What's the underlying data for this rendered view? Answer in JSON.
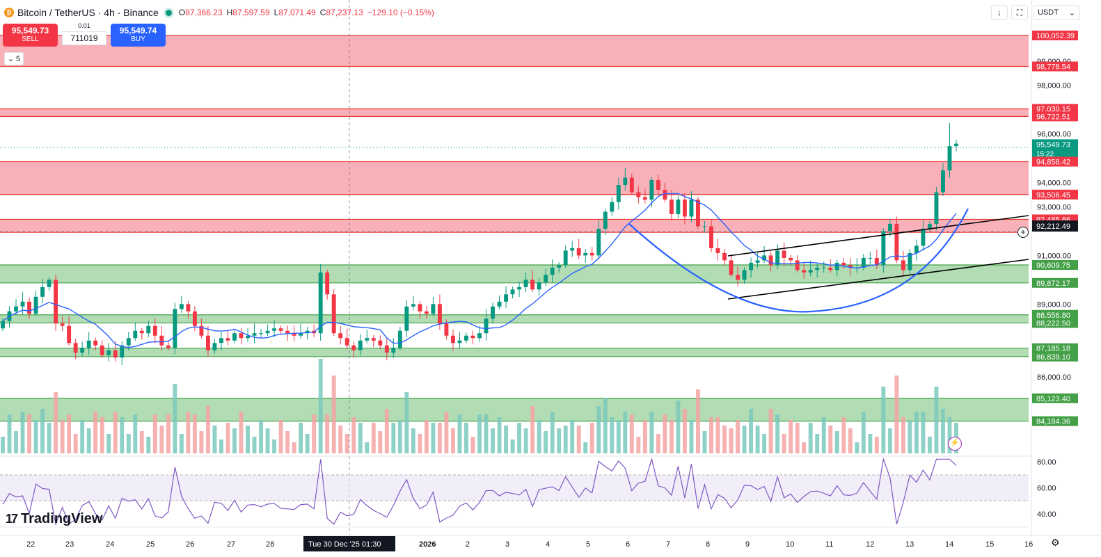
{
  "header": {
    "symbol": "Bitcoin / TetherUS · 4h · Binance",
    "open_label": "O",
    "open": "87,366.23",
    "high_label": "H",
    "high": "87,597.59",
    "low_label": "L",
    "low": "87,071.49",
    "close_label": "C",
    "close": "87,237.13",
    "change": "−129.10 (−0.15%)"
  },
  "trade": {
    "sell_price": "95,549.73",
    "sell_label": "SELL",
    "buy_price": "95,549.74",
    "buy_label": "BUY",
    "qty_step": "0.01",
    "qty": "711019"
  },
  "indicators_toggle": "5",
  "toolbar": {
    "currency": "USDT",
    "download_icon": "download-icon",
    "fullscreen_icon": "fullscreen-icon"
  },
  "branding": {
    "logo_text": "TradingView"
  },
  "colors": {
    "up": "#089981",
    "down": "#f23645",
    "ma": "#2962ff",
    "resistance_zone": "#f7a9b0",
    "support_zone": "#a5d6a7",
    "rsi_line": "#7e57c2"
  },
  "chart_data": {
    "type": "candlestick",
    "timeframe": "4h",
    "price_axis": {
      "range": [
        83600,
        100400
      ],
      "ticks": [
        "100,052.39",
        "99,000.00",
        "98,778.54",
        "98,000.00",
        "97,030.15",
        "96,722.51",
        "96,000.00",
        "95,549.73",
        "94,858.42",
        "94,000.00",
        "93,506.45",
        "93,000.00",
        "92,485.66",
        "92,212.49",
        "91,000.00",
        "90,609.75",
        "89,872.17",
        "89,000.00",
        "88,556.80",
        "88,222.50",
        "87,185.18",
        "86,839.10",
        "86,000.00",
        "85,123.40",
        "84,184.36"
      ]
    },
    "last_price": {
      "value": "95,549.73",
      "countdown": "15:22"
    },
    "crosshair_price": "92,212.49",
    "crosshair_time": "Tue 30 Dec '25   01:30",
    "x_axis_labels": [
      "22",
      "23",
      "24",
      "25",
      "26",
      "27",
      "28",
      "Tue 30 Dec '25   01:30",
      "2026",
      "2",
      "3",
      "4",
      "5",
      "6",
      "7",
      "8",
      "9",
      "10",
      "11",
      "12",
      "13",
      "14",
      "15",
      "16"
    ],
    "zones": [
      {
        "kind": "resistance",
        "from": 98778.54,
        "to": 100052.39
      },
      {
        "kind": "resistance",
        "from": 96722.51,
        "to": 97030.15
      },
      {
        "kind": "resistance",
        "from": 93506.45,
        "to": 94858.42
      },
      {
        "kind": "resistance",
        "from": 91950,
        "to": 92485.66
      },
      {
        "kind": "support",
        "from": 89872.17,
        "to": 90609.75
      },
      {
        "kind": "support",
        "from": 88222.5,
        "to": 88556.8
      },
      {
        "kind": "support",
        "from": 86839.1,
        "to": 87185.18
      },
      {
        "kind": "support",
        "from": 84184.36,
        "to": 85123.4
      }
    ],
    "rsi_axis": {
      "ticks": [
        "80.00",
        "60.00",
        "40.00"
      ],
      "upper": 70,
      "lower": 50
    }
  }
}
